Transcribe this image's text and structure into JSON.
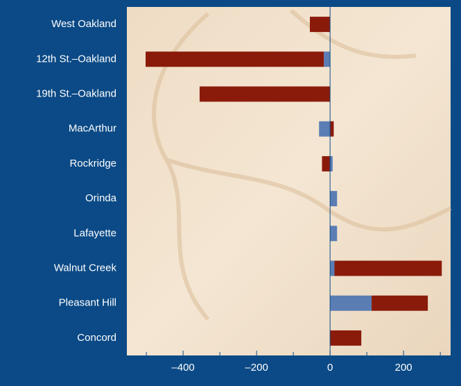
{
  "chart_data": {
    "type": "bar",
    "orientation": "horizontal",
    "stacked": true,
    "categories": [
      "West Oakland",
      "12th St.–Oakland",
      "19th St.–Oakland",
      "MacArthur",
      "Rockridge",
      "Orinda",
      "Lafayette",
      "Walnut Creek",
      "Pleasant Hill",
      "Concord"
    ],
    "series": [
      {
        "color": "#5a7db3",
        "values": [
          0,
          -17,
          0,
          -30,
          7,
          19,
          19,
          12,
          113,
          0
        ]
      },
      {
        "color": "#8a1b0b",
        "values": [
          -55,
          -485,
          -355,
          10,
          -22,
          0,
          0,
          292,
          153,
          85
        ]
      }
    ],
    "xlim": [
      -553,
      328
    ],
    "xticks": [
      {
        "value": -400,
        "label": "–400"
      },
      {
        "value": -200,
        "label": "–200"
      },
      0,
      200
    ],
    "xminor_ticks": [
      -500,
      -300,
      -100,
      100,
      300
    ]
  }
}
